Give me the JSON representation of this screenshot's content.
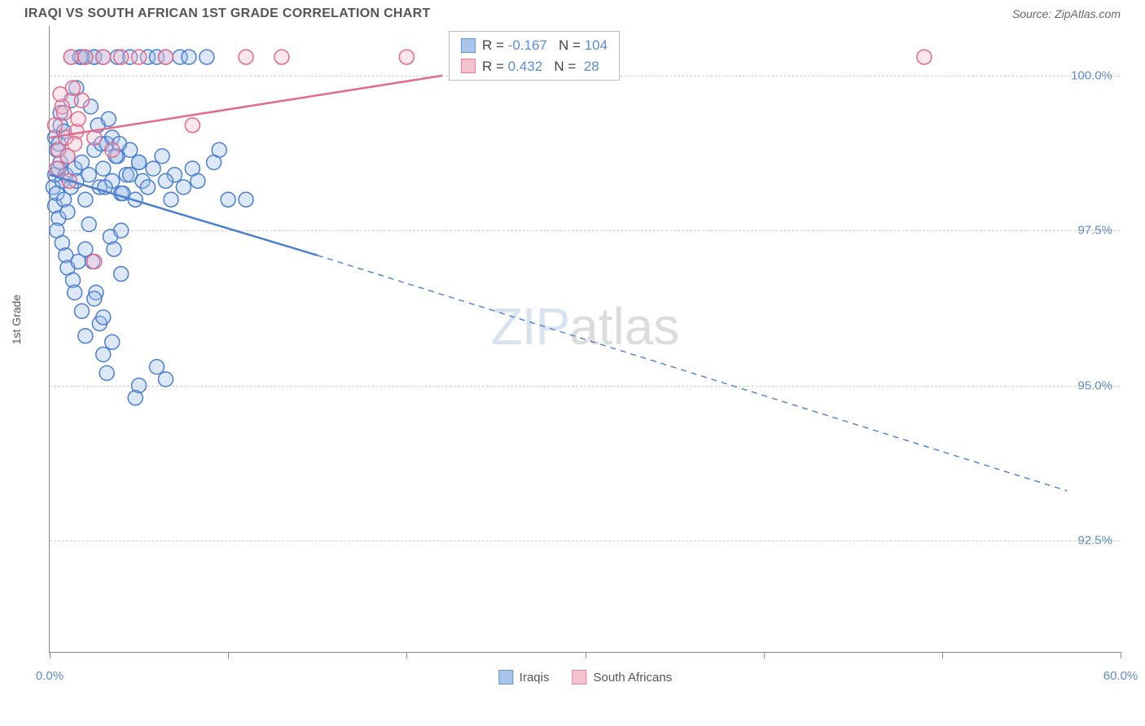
{
  "header": {
    "title": "IRAQI VS SOUTH AFRICAN 1ST GRADE CORRELATION CHART",
    "source": "Source: ZipAtlas.com"
  },
  "chart": {
    "type": "scatter",
    "y_axis_label": "1st Grade",
    "background_color": "#ffffff",
    "grid_color": "#cccccc",
    "axis_color": "#888888",
    "xlim": [
      0,
      60
    ],
    "ylim": [
      90.7,
      100.8
    ],
    "ytick_values": [
      92.5,
      95.0,
      97.5,
      100.0
    ],
    "ytick_labels": [
      "92.5%",
      "95.0%",
      "97.5%",
      "100.0%"
    ],
    "xtick_values": [
      0,
      10,
      20,
      30,
      40,
      50,
      60
    ],
    "xtick_labels_shown": {
      "0": "0.0%",
      "60": "60.0%"
    },
    "marker_radius": 9,
    "marker_stroke_width": 1.5,
    "marker_fill_opacity": 0.35,
    "trend_line_width": 2.5,
    "watermark": {
      "text1": "ZIP",
      "text2": "atlas"
    }
  },
  "series": [
    {
      "id": "iraqis",
      "label": "Iraqis",
      "color_stroke": "#4a7fd1",
      "color_fill": "#9cbce8",
      "R": "-0.167",
      "N": "104",
      "trend": {
        "x1": 0,
        "y1": 98.4,
        "x2": 15,
        "y2": 97.1,
        "extend_x": 57,
        "extend_y": 93.3
      },
      "points": [
        [
          0.2,
          98.2
        ],
        [
          0.3,
          98.4
        ],
        [
          0.4,
          98.1
        ],
        [
          0.5,
          98.5
        ],
        [
          0.3,
          97.9
        ],
        [
          0.6,
          98.6
        ],
        [
          0.4,
          98.8
        ],
        [
          0.7,
          98.3
        ],
        [
          0.5,
          97.7
        ],
        [
          0.8,
          98.0
        ],
        [
          0.3,
          99.0
        ],
        [
          0.6,
          99.2
        ],
        [
          0.9,
          98.4
        ],
        [
          0.4,
          97.5
        ],
        [
          1.0,
          98.7
        ],
        [
          0.5,
          98.9
        ],
        [
          1.2,
          98.2
        ],
        [
          0.7,
          97.3
        ],
        [
          1.4,
          98.5
        ],
        [
          0.8,
          99.1
        ],
        [
          1.0,
          97.8
        ],
        [
          1.5,
          98.3
        ],
        [
          0.6,
          99.4
        ],
        [
          1.8,
          98.6
        ],
        [
          0.9,
          97.1
        ],
        [
          2.0,
          98.0
        ],
        [
          1.2,
          99.6
        ],
        [
          2.2,
          98.4
        ],
        [
          1.0,
          96.9
        ],
        [
          2.5,
          98.8
        ],
        [
          1.5,
          99.8
        ],
        [
          2.8,
          98.2
        ],
        [
          1.3,
          96.7
        ],
        [
          3.0,
          98.5
        ],
        [
          1.7,
          100.3
        ],
        [
          3.2,
          98.9
        ],
        [
          1.4,
          96.5
        ],
        [
          3.5,
          98.3
        ],
        [
          2.0,
          100.3
        ],
        [
          3.8,
          98.7
        ],
        [
          1.6,
          97.0
        ],
        [
          4.0,
          98.1
        ],
        [
          2.3,
          99.5
        ],
        [
          4.3,
          98.4
        ],
        [
          1.8,
          96.2
        ],
        [
          4.5,
          98.8
        ],
        [
          2.5,
          100.3
        ],
        [
          4.8,
          98.0
        ],
        [
          2.0,
          95.8
        ],
        [
          5.0,
          98.6
        ],
        [
          2.7,
          99.2
        ],
        [
          5.2,
          98.3
        ],
        [
          2.2,
          97.6
        ],
        [
          5.5,
          100.3
        ],
        [
          2.9,
          98.9
        ],
        [
          5.8,
          98.5
        ],
        [
          2.4,
          97.0
        ],
        [
          6.0,
          100.3
        ],
        [
          3.1,
          98.2
        ],
        [
          6.3,
          98.7
        ],
        [
          2.6,
          96.5
        ],
        [
          6.5,
          100.3
        ],
        [
          3.3,
          99.3
        ],
        [
          6.8,
          98.0
        ],
        [
          2.8,
          96.0
        ],
        [
          7.0,
          98.4
        ],
        [
          3.5,
          99.0
        ],
        [
          7.3,
          100.3
        ],
        [
          3.0,
          95.5
        ],
        [
          7.5,
          98.2
        ],
        [
          3.7,
          98.7
        ],
        [
          7.8,
          100.3
        ],
        [
          3.2,
          95.2
        ],
        [
          8.0,
          98.5
        ],
        [
          3.9,
          98.9
        ],
        [
          8.3,
          98.3
        ],
        [
          3.4,
          97.4
        ],
        [
          8.8,
          100.3
        ],
        [
          4.1,
          98.1
        ],
        [
          9.2,
          98.6
        ],
        [
          3.6,
          97.2
        ],
        [
          9.5,
          98.8
        ],
        [
          4.5,
          98.4
        ],
        [
          10.0,
          98.0
        ],
        [
          5.0,
          95.0
        ],
        [
          4.8,
          94.8
        ],
        [
          6.0,
          95.3
        ],
        [
          6.5,
          95.1
        ],
        [
          3.0,
          96.1
        ],
        [
          3.5,
          95.7
        ],
        [
          2.5,
          100.3
        ],
        [
          1.8,
          100.3
        ],
        [
          3.8,
          100.3
        ],
        [
          4.5,
          100.3
        ],
        [
          1.2,
          100.3
        ],
        [
          2.0,
          97.2
        ],
        [
          4.0,
          96.8
        ],
        [
          5.5,
          98.2
        ],
        [
          2.5,
          96.4
        ],
        [
          3.0,
          100.3
        ],
        [
          11.0,
          98.0
        ],
        [
          6.5,
          98.3
        ],
        [
          5.0,
          98.6
        ],
        [
          4.0,
          97.5
        ]
      ]
    },
    {
      "id": "south_africans",
      "label": "South Africans",
      "color_stroke": "#e26b8c",
      "color_fill": "#f4b8c8",
      "R": "0.432",
      "N": "28",
      "trend": {
        "x1": 0,
        "y1": 99.0,
        "x2": 22,
        "y2": 100.0,
        "extend_x": null,
        "extend_y": null
      },
      "points": [
        [
          0.3,
          99.2
        ],
        [
          0.5,
          98.8
        ],
        [
          0.7,
          99.5
        ],
        [
          0.4,
          98.5
        ],
        [
          0.9,
          99.0
        ],
        [
          0.6,
          99.7
        ],
        [
          1.1,
          98.3
        ],
        [
          0.8,
          99.4
        ],
        [
          1.3,
          99.8
        ],
        [
          1.0,
          98.7
        ],
        [
          1.5,
          99.1
        ],
        [
          1.2,
          100.3
        ],
        [
          1.8,
          99.6
        ],
        [
          1.4,
          98.9
        ],
        [
          2.0,
          100.3
        ],
        [
          1.6,
          99.3
        ],
        [
          2.5,
          99.0
        ],
        [
          3.0,
          100.3
        ],
        [
          3.5,
          98.8
        ],
        [
          4.0,
          100.3
        ],
        [
          5.0,
          100.3
        ],
        [
          6.5,
          100.3
        ],
        [
          8.0,
          99.2
        ],
        [
          11.0,
          100.3
        ],
        [
          13.0,
          100.3
        ],
        [
          20.0,
          100.3
        ],
        [
          49.0,
          100.3
        ],
        [
          2.5,
          97.0
        ]
      ]
    }
  ],
  "legend": {
    "stat_prefix_R": "R =",
    "stat_prefix_N": "N =",
    "bottom_items": [
      "Iraqis",
      "South Africans"
    ]
  }
}
